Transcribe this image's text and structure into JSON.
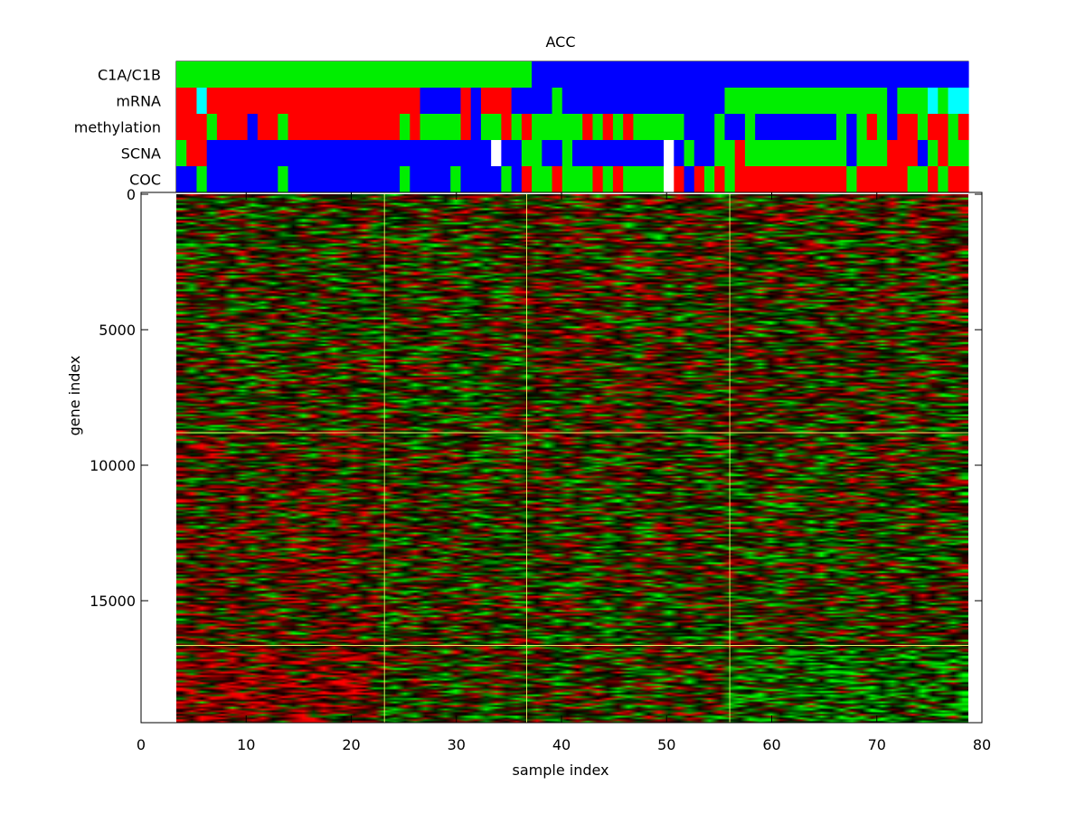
{
  "chart_data": {
    "type": "heatmap",
    "title": "ACC",
    "xlabel": "sample index",
    "ylabel": "gene index",
    "xlim": [
      0,
      80
    ],
    "ylim": [
      0,
      19500
    ],
    "y_reversed": true,
    "x_ticks": [
      "0",
      "10",
      "20",
      "30",
      "40",
      "50",
      "60",
      "70",
      "80"
    ],
    "y_ticks": [
      "0",
      "5000",
      "10000",
      "15000"
    ],
    "n_samples": 78,
    "colormap": "green-black-red",
    "sample_cluster_boundaries": [
      20.5,
      34.5,
      54.5
    ],
    "gene_cluster_boundaries": [
      8800,
      16650
    ],
    "annotation_colors": {
      "1": "#00ee00",
      "2": "#0000ff",
      "3": "#ff0000",
      "4": "#00ffff",
      "0": "#ffffff"
    },
    "annotation_tracks": [
      {
        "label": "C1A/C1B",
        "segments": [
          [
            1,
            35,
            1
          ],
          [
            36,
            78,
            2
          ]
        ]
      },
      {
        "label": "mRNA",
        "segments": [
          [
            1,
            2,
            3
          ],
          [
            3,
            3,
            4
          ],
          [
            4,
            24,
            3
          ],
          [
            25,
            28,
            2
          ],
          [
            29,
            29,
            3
          ],
          [
            30,
            30,
            2
          ],
          [
            31,
            33,
            3
          ],
          [
            34,
            34,
            2
          ],
          [
            35,
            35,
            2
          ],
          [
            36,
            37,
            2
          ],
          [
            38,
            38,
            1
          ],
          [
            39,
            54,
            2
          ],
          [
            55,
            65,
            1
          ],
          [
            66,
            70,
            1
          ],
          [
            71,
            71,
            2
          ],
          [
            72,
            74,
            1
          ],
          [
            75,
            75,
            4
          ],
          [
            76,
            76,
            1
          ],
          [
            77,
            78,
            4
          ]
        ]
      },
      {
        "label": "methylation",
        "segments": [
          [
            1,
            3,
            3
          ],
          [
            4,
            4,
            1
          ],
          [
            5,
            7,
            3
          ],
          [
            8,
            8,
            2
          ],
          [
            9,
            10,
            3
          ],
          [
            11,
            11,
            1
          ],
          [
            12,
            22,
            3
          ],
          [
            23,
            23,
            1
          ],
          [
            24,
            24,
            3
          ],
          [
            25,
            25,
            1
          ],
          [
            26,
            28,
            1
          ],
          [
            29,
            29,
            3
          ],
          [
            30,
            30,
            2
          ],
          [
            31,
            32,
            1
          ],
          [
            33,
            33,
            3
          ],
          [
            34,
            34,
            1
          ],
          [
            35,
            35,
            3
          ],
          [
            36,
            40,
            1
          ],
          [
            41,
            41,
            3
          ],
          [
            42,
            42,
            1
          ],
          [
            43,
            43,
            3
          ],
          [
            44,
            44,
            1
          ],
          [
            45,
            45,
            3
          ],
          [
            46,
            50,
            1
          ],
          [
            51,
            53,
            2
          ],
          [
            54,
            54,
            1
          ],
          [
            55,
            56,
            2
          ],
          [
            57,
            57,
            1
          ],
          [
            58,
            65,
            2
          ],
          [
            66,
            66,
            1
          ],
          [
            67,
            67,
            2
          ],
          [
            68,
            68,
            1
          ],
          [
            69,
            69,
            3
          ],
          [
            70,
            70,
            1
          ],
          [
            71,
            71,
            2
          ],
          [
            72,
            73,
            3
          ],
          [
            74,
            74,
            1
          ],
          [
            75,
            76,
            3
          ],
          [
            77,
            77,
            1
          ],
          [
            78,
            78,
            3
          ]
        ]
      },
      {
        "label": "SCNA",
        "segments": [
          [
            1,
            1,
            1
          ],
          [
            2,
            3,
            3
          ],
          [
            4,
            31,
            2
          ],
          [
            32,
            32,
            0
          ],
          [
            33,
            34,
            2
          ],
          [
            35,
            35,
            1
          ],
          [
            36,
            36,
            1
          ],
          [
            37,
            38,
            2
          ],
          [
            39,
            39,
            1
          ],
          [
            40,
            48,
            2
          ],
          [
            49,
            49,
            0
          ],
          [
            50,
            50,
            2
          ],
          [
            51,
            51,
            1
          ],
          [
            52,
            53,
            2
          ],
          [
            54,
            55,
            1
          ],
          [
            56,
            56,
            3
          ],
          [
            57,
            66,
            1
          ],
          [
            67,
            67,
            2
          ],
          [
            68,
            70,
            1
          ],
          [
            71,
            73,
            3
          ],
          [
            74,
            74,
            2
          ],
          [
            75,
            75,
            1
          ],
          [
            76,
            76,
            3
          ],
          [
            77,
            78,
            1
          ]
        ]
      },
      {
        "label": "COC",
        "segments": [
          [
            1,
            2,
            2
          ],
          [
            3,
            3,
            1
          ],
          [
            4,
            10,
            2
          ],
          [
            11,
            11,
            1
          ],
          [
            12,
            22,
            2
          ],
          [
            23,
            23,
            1
          ],
          [
            24,
            27,
            2
          ],
          [
            28,
            28,
            1
          ],
          [
            29,
            32,
            2
          ],
          [
            33,
            33,
            1
          ],
          [
            34,
            34,
            2
          ],
          [
            35,
            35,
            3
          ],
          [
            36,
            37,
            1
          ],
          [
            38,
            38,
            3
          ],
          [
            39,
            41,
            1
          ],
          [
            42,
            42,
            3
          ],
          [
            43,
            43,
            1
          ],
          [
            44,
            44,
            3
          ],
          [
            45,
            48,
            1
          ],
          [
            49,
            49,
            0
          ],
          [
            50,
            50,
            3
          ],
          [
            51,
            51,
            2
          ],
          [
            52,
            52,
            3
          ],
          [
            53,
            53,
            1
          ],
          [
            54,
            54,
            3
          ],
          [
            55,
            55,
            1
          ],
          [
            56,
            56,
            3
          ],
          [
            57,
            66,
            3
          ],
          [
            67,
            67,
            1
          ],
          [
            68,
            72,
            3
          ],
          [
            73,
            74,
            1
          ],
          [
            75,
            75,
            3
          ],
          [
            76,
            76,
            1
          ],
          [
            77,
            78,
            3
          ]
        ]
      }
    ]
  }
}
